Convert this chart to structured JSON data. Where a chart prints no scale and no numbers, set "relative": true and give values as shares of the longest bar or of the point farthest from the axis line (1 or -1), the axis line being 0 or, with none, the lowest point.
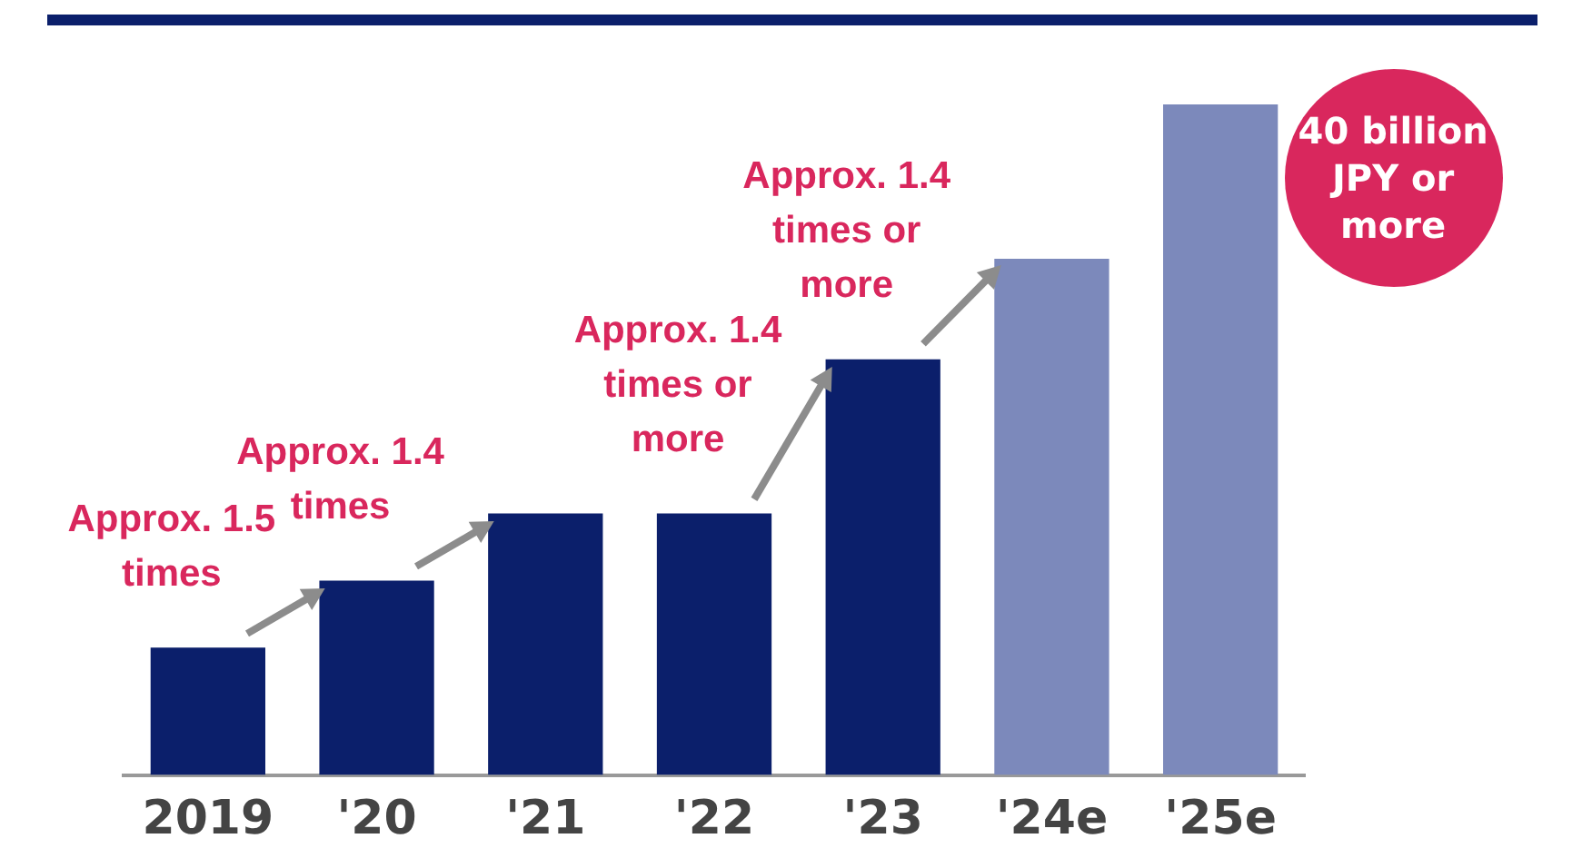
{
  "chart_data": {
    "type": "bar",
    "relative": true,
    "categories": [
      "2019",
      "'20",
      "'21",
      "'22",
      "'23",
      "'24e",
      "'25e"
    ],
    "values": [
      0.19,
      0.29,
      0.39,
      0.39,
      0.62,
      0.77,
      1
    ],
    "colors": [
      "#0b1f6b",
      "#0b1f6b",
      "#0b1f6b",
      "#0b1f6b",
      "#0b1f6b",
      "#7c89bb",
      "#7c89bb"
    ],
    "annotations": [
      "Approx. 1.5 times",
      "Approx. 1.4 times",
      "Approx. 1.4 times or more",
      "Approx. 1.4 times or more",
      "40 billion JPY or more"
    ],
    "grid": false,
    "legend": false
  }
}
